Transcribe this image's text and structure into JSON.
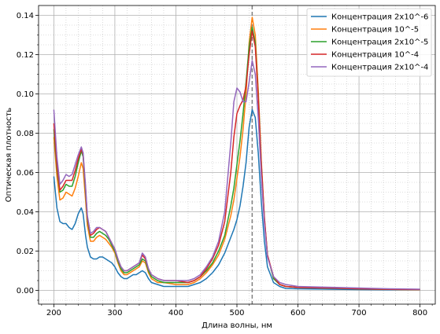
{
  "chart_data": {
    "type": "line",
    "title": "",
    "xlabel": "Длина волны, нм",
    "ylabel": "Оптическая плотность",
    "xlim": [
      175,
      825
    ],
    "ylim": [
      -0.007,
      0.145
    ],
    "xticks": [
      200,
      300,
      400,
      500,
      600,
      700,
      800
    ],
    "xtick_labels": [
      "200",
      "300",
      "400",
      "500",
      "600",
      "700",
      "800"
    ],
    "yticks": [
      0.0,
      0.02,
      0.04,
      0.06,
      0.08,
      0.1,
      0.12,
      0.14
    ],
    "ytick_labels": [
      "0.00",
      "0.02",
      "0.04",
      "0.06",
      "0.08",
      "0.10",
      "0.12",
      "0.14"
    ],
    "grid": true,
    "minor_grid": true,
    "legend_position": "top-right",
    "vline": {
      "x": 525,
      "style": "dashed",
      "color": "#808080"
    },
    "series": [
      {
        "name": "Концентрация 2x10^-6",
        "color": "#1f77b4",
        "x": [
          200,
          205,
          210,
          215,
          220,
          225,
          230,
          235,
          240,
          245,
          248,
          252,
          255,
          260,
          265,
          270,
          275,
          280,
          285,
          290,
          295,
          300,
          305,
          310,
          315,
          320,
          325,
          330,
          335,
          340,
          345,
          350,
          355,
          360,
          370,
          380,
          400,
          420,
          430,
          440,
          450,
          460,
          470,
          480,
          490,
          495,
          500,
          505,
          510,
          515,
          520,
          525,
          530,
          535,
          540,
          545,
          550,
          560,
          570,
          580,
          600,
          650,
          700,
          750,
          800
        ],
        "y": [
          0.058,
          0.042,
          0.035,
          0.034,
          0.034,
          0.032,
          0.031,
          0.034,
          0.039,
          0.042,
          0.039,
          0.028,
          0.022,
          0.017,
          0.016,
          0.016,
          0.017,
          0.017,
          0.016,
          0.015,
          0.014,
          0.012,
          0.009,
          0.007,
          0.006,
          0.006,
          0.007,
          0.008,
          0.008,
          0.009,
          0.01,
          0.009,
          0.006,
          0.004,
          0.003,
          0.002,
          0.002,
          0.002,
          0.003,
          0.004,
          0.006,
          0.009,
          0.013,
          0.019,
          0.027,
          0.031,
          0.036,
          0.043,
          0.053,
          0.065,
          0.083,
          0.092,
          0.088,
          0.07,
          0.045,
          0.025,
          0.012,
          0.004,
          0.002,
          0.001,
          0.0008,
          0.0006,
          0.0004,
          0.0003,
          0.0003
        ]
      },
      {
        "name": "Концентрация 10^-5",
        "color": "#ff7f0e",
        "x": [
          200,
          205,
          210,
          215,
          220,
          225,
          230,
          235,
          240,
          245,
          248,
          252,
          255,
          260,
          265,
          270,
          275,
          280,
          285,
          290,
          295,
          300,
          305,
          310,
          315,
          320,
          325,
          330,
          335,
          340,
          345,
          350,
          355,
          360,
          370,
          380,
          400,
          420,
          430,
          440,
          450,
          460,
          470,
          480,
          490,
          495,
          500,
          505,
          510,
          515,
          520,
          525,
          530,
          535,
          540,
          545,
          550,
          560,
          570,
          580,
          600,
          650,
          700,
          750,
          800
        ],
        "y": [
          0.078,
          0.058,
          0.046,
          0.047,
          0.05,
          0.049,
          0.048,
          0.052,
          0.058,
          0.065,
          0.062,
          0.046,
          0.033,
          0.025,
          0.025,
          0.027,
          0.028,
          0.027,
          0.026,
          0.024,
          0.022,
          0.019,
          0.014,
          0.01,
          0.008,
          0.008,
          0.009,
          0.01,
          0.011,
          0.012,
          0.015,
          0.014,
          0.009,
          0.006,
          0.004,
          0.004,
          0.003,
          0.003,
          0.004,
          0.006,
          0.009,
          0.013,
          0.018,
          0.026,
          0.038,
          0.046,
          0.057,
          0.068,
          0.082,
          0.1,
          0.126,
          0.139,
          0.13,
          0.102,
          0.066,
          0.037,
          0.018,
          0.006,
          0.003,
          0.002,
          0.0015,
          0.0012,
          0.0008,
          0.0005,
          0.0004
        ]
      },
      {
        "name": "Концентрация 2x10^-5",
        "color": "#2ca02c",
        "x": [
          200,
          205,
          210,
          215,
          220,
          225,
          230,
          235,
          240,
          245,
          248,
          252,
          255,
          260,
          265,
          270,
          275,
          280,
          285,
          290,
          295,
          300,
          305,
          310,
          315,
          320,
          325,
          330,
          335,
          340,
          345,
          350,
          355,
          360,
          370,
          380,
          400,
          420,
          430,
          440,
          450,
          460,
          470,
          480,
          490,
          495,
          500,
          505,
          510,
          515,
          520,
          525,
          530,
          535,
          540,
          545,
          550,
          560,
          570,
          580,
          600,
          650,
          700,
          750,
          800
        ],
        "y": [
          0.082,
          0.062,
          0.05,
          0.051,
          0.054,
          0.053,
          0.053,
          0.058,
          0.065,
          0.071,
          0.068,
          0.05,
          0.036,
          0.027,
          0.027,
          0.029,
          0.03,
          0.029,
          0.028,
          0.026,
          0.023,
          0.02,
          0.015,
          0.011,
          0.009,
          0.009,
          0.01,
          0.011,
          0.012,
          0.013,
          0.016,
          0.015,
          0.01,
          0.007,
          0.005,
          0.004,
          0.004,
          0.004,
          0.005,
          0.007,
          0.01,
          0.014,
          0.02,
          0.028,
          0.043,
          0.052,
          0.064,
          0.076,
          0.09,
          0.106,
          0.124,
          0.134,
          0.126,
          0.099,
          0.064,
          0.036,
          0.018,
          0.006,
          0.003,
          0.002,
          0.0015,
          0.0012,
          0.0008,
          0.0005,
          0.0004
        ]
      },
      {
        "name": "Концентрация 10^-4",
        "color": "#d62728",
        "x": [
          200,
          205,
          210,
          215,
          220,
          225,
          230,
          235,
          240,
          245,
          248,
          252,
          255,
          260,
          265,
          270,
          275,
          280,
          285,
          290,
          295,
          300,
          305,
          310,
          315,
          320,
          325,
          330,
          335,
          340,
          345,
          350,
          355,
          360,
          370,
          380,
          400,
          420,
          430,
          440,
          450,
          460,
          470,
          480,
          490,
          495,
          500,
          505,
          510,
          515,
          520,
          525,
          530,
          535,
          540,
          545,
          550,
          560,
          570,
          580,
          600,
          650,
          700,
          750,
          800
        ],
        "y": [
          0.085,
          0.064,
          0.051,
          0.053,
          0.056,
          0.056,
          0.056,
          0.061,
          0.067,
          0.072,
          0.069,
          0.052,
          0.037,
          0.028,
          0.029,
          0.031,
          0.032,
          0.031,
          0.03,
          0.027,
          0.024,
          0.021,
          0.016,
          0.012,
          0.01,
          0.01,
          0.011,
          0.012,
          0.013,
          0.014,
          0.018,
          0.016,
          0.011,
          0.008,
          0.006,
          0.005,
          0.005,
          0.004,
          0.005,
          0.007,
          0.011,
          0.016,
          0.023,
          0.035,
          0.06,
          0.078,
          0.09,
          0.094,
          0.097,
          0.104,
          0.12,
          0.132,
          0.124,
          0.098,
          0.064,
          0.037,
          0.018,
          0.007,
          0.003,
          0.002,
          0.0015,
          0.0012,
          0.0008,
          0.0005,
          0.0004
        ]
      },
      {
        "name": "Концентрация 2x10^-4",
        "color": "#9467bd",
        "x": [
          200,
          205,
          210,
          215,
          220,
          225,
          230,
          235,
          240,
          245,
          248,
          252,
          255,
          260,
          265,
          270,
          275,
          280,
          285,
          290,
          295,
          300,
          305,
          310,
          315,
          320,
          325,
          330,
          335,
          340,
          345,
          350,
          355,
          360,
          370,
          380,
          400,
          420,
          430,
          440,
          450,
          460,
          470,
          480,
          490,
          495,
          500,
          505,
          510,
          515,
          520,
          525,
          530,
          535,
          540,
          545,
          550,
          560,
          570,
          580,
          600,
          650,
          700,
          750,
          800
        ],
        "y": [
          0.092,
          0.068,
          0.054,
          0.056,
          0.059,
          0.058,
          0.059,
          0.064,
          0.069,
          0.073,
          0.07,
          0.053,
          0.038,
          0.029,
          0.03,
          0.032,
          0.032,
          0.031,
          0.03,
          0.027,
          0.024,
          0.021,
          0.016,
          0.012,
          0.01,
          0.01,
          0.011,
          0.012,
          0.013,
          0.014,
          0.019,
          0.017,
          0.011,
          0.008,
          0.006,
          0.005,
          0.005,
          0.005,
          0.006,
          0.008,
          0.012,
          0.017,
          0.025,
          0.04,
          0.075,
          0.096,
          0.103,
          0.101,
          0.096,
          0.096,
          0.106,
          0.117,
          0.11,
          0.088,
          0.058,
          0.034,
          0.017,
          0.007,
          0.004,
          0.003,
          0.002,
          0.0016,
          0.0012,
          0.0008,
          0.0006
        ]
      }
    ]
  }
}
